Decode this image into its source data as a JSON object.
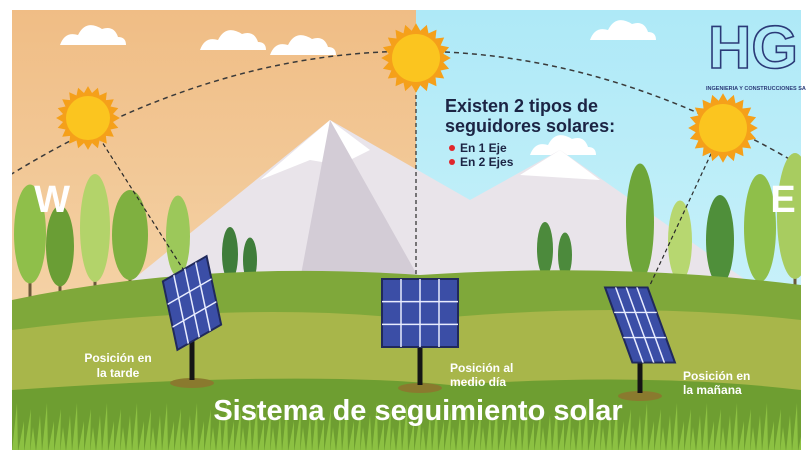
{
  "logo": {
    "mark": "HG",
    "subtitle": "INGENIERIA Y CONSTRUCCIONES SA"
  },
  "compass": {
    "west": "W",
    "east": "E"
  },
  "info": {
    "title_lines": [
      "Existen 2 tipos de",
      "seguidores solares:"
    ],
    "items": [
      "En 1 Eje",
      "En 2 Ejes"
    ]
  },
  "positions": [
    {
      "lines": [
        "Posición en",
        "la tarde"
      ]
    },
    {
      "lines": [
        "Posición al",
        "medio día"
      ]
    },
    {
      "lines": [
        "Posición en",
        "la mañana"
      ]
    }
  ],
  "title": "Sistema de seguimiento solar"
}
